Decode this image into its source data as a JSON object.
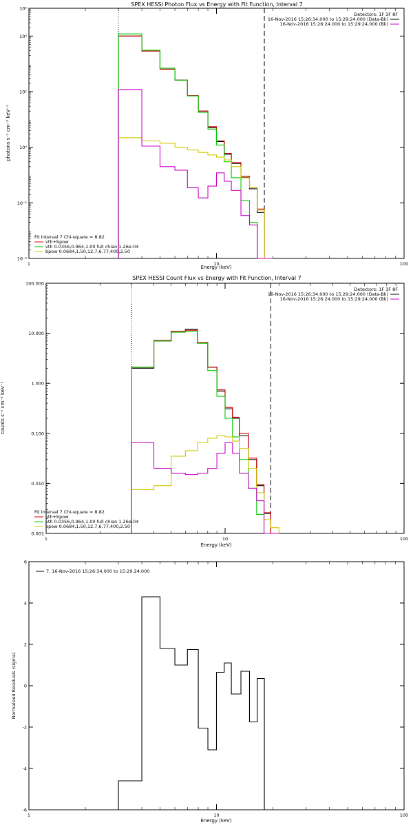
{
  "colors": {
    "data": "#000000",
    "total": "#d40000",
    "vth": "#00c800",
    "bpow": "#d2c800",
    "bk": "#c800c8"
  },
  "chart_data": [
    {
      "type": "line",
      "title": "SPEX HESSI Photon Flux vs Energy with Fit Function, Interval 7",
      "xlabel": "Energy (keV)",
      "ylabel": "photons s⁻¹ cm⁻² keV⁻¹",
      "xscale": "log",
      "yscale": "log",
      "xlim": [
        1,
        100
      ],
      "ylim": [
        0.0001,
        100000
      ],
      "xticks": [
        1,
        10,
        100
      ],
      "xtick_labels": [
        "1",
        "10",
        "100"
      ],
      "yticks": [
        0.0001,
        0.01,
        1,
        100,
        10000,
        100000
      ],
      "ytick_labels": [
        "10⁻⁴",
        "10⁻²",
        "10⁰",
        "10²",
        "10⁴",
        "10⁵"
      ],
      "legend_right": {
        "header": "Detectors: 1F 3F 8F",
        "entries": [
          {
            "label": "16-Nov-2016 15:26:34.000 to 15:29:24.000 (Data-Bk)",
            "color_key": "data"
          },
          {
            "label": "16-Nov-2016 15:26:24.000 to 15:29:24.000 (Bk)",
            "color_key": "bk"
          }
        ]
      },
      "legend_left": {
        "header": "Fit Interval 7   Chi-square = 8.82",
        "entries": [
          {
            "label": "vth+bpow",
            "color_key": "total"
          },
          {
            "label": "vth 0.0356,0.964,1.00  full chian 1.26e-04",
            "color_key": "vth"
          },
          {
            "label": "bpow 0.0684,1.50,12.7,6.77,400,2.50",
            "color_key": "bpow"
          }
        ]
      },
      "markers": [
        {
          "x": 3.0,
          "style": "dotted"
        },
        {
          "x": 18.0,
          "style": "dashed"
        }
      ],
      "bin_edges": [
        3.0,
        4.0,
        5.0,
        6.0,
        7.0,
        8.0,
        9.0,
        10.0,
        11.0,
        12.0,
        13.5,
        15.0,
        16.5,
        18.0,
        20.0
      ],
      "series": [
        {
          "color_key": "data",
          "values": [
            10000,
            2900,
            640,
            260,
            72,
            20,
            5.0,
            1.6,
            0.56,
            0.26,
            0.082,
            0.032,
            0.0045,
            0.0001
          ]
        },
        {
          "color_key": "total",
          "values": [
            10000,
            2900,
            640,
            260,
            72,
            20,
            5.5,
            1.7,
            0.6,
            0.28,
            0.09,
            0.035,
            0.006,
            0.0001
          ]
        },
        {
          "color_key": "vth",
          "values": [
            12000,
            3100,
            700,
            260,
            70,
            18,
            4.5,
            1.2,
            0.3,
            0.08,
            0.012,
            0.002,
            0.0001,
            0.0001
          ]
        },
        {
          "color_key": "bpow",
          "values": [
            2.2,
            1.7,
            1.4,
            1.0,
            0.8,
            0.65,
            0.53,
            0.44,
            0.35,
            0.2,
            0.08,
            0.035,
            0.0055,
            0.0001
          ]
        },
        {
          "color_key": "bk",
          "values": [
            120,
            1.1,
            0.2,
            0.15,
            0.035,
            0.015,
            0.04,
            0.12,
            0.06,
            0.028,
            0.0035,
            0.0016,
            0.0001,
            0.0001
          ]
        }
      ]
    },
    {
      "type": "line",
      "title": "SPEX HESSI Count Flux vs Energy with Fit Function, Interval 7",
      "xlabel": "Energy (keV)",
      "ylabel": "counts s⁻¹ cm⁻² keV⁻¹",
      "xscale": "log",
      "yscale": "log",
      "xlim": [
        1,
        100
      ],
      "ylim": [
        0.001,
        100
      ],
      "xticks": [
        1,
        10,
        100
      ],
      "xtick_labels": [
        "1",
        "10",
        "100"
      ],
      "yticks": [
        0.001,
        0.01,
        0.1,
        1,
        10,
        100
      ],
      "ytick_labels": [
        "0.001",
        "0.010",
        "0.100",
        "1.000",
        "10.000",
        "100.000"
      ],
      "legend_right": {
        "header": "Detectors: 1F 3F 8F",
        "entries": [
          {
            "label": "16-Nov-2016 15:26:34.000 to 15:29:24.000 (Data-Bk)",
            "color_key": "data"
          },
          {
            "label": "16-Nov-2016 15:26:24.000 to 15:29:24.000 (Bk)",
            "color_key": "bk"
          }
        ]
      },
      "legend_left": {
        "header": "Fit Interval 7   Chi-square = 8.82",
        "entries": [
          {
            "label": "vth+bpow",
            "color_key": "total"
          },
          {
            "label": "vth 0.0356,0.964,1.00  full chian 1.26e-04",
            "color_key": "vth"
          },
          {
            "label": "bpow 0.0684,1.50,12.7,6.77,400,2.50",
            "color_key": "bpow"
          }
        ]
      },
      "markers": [
        {
          "x": 3.0,
          "style": "dotted"
        },
        {
          "x": 18.0,
          "style": "dashed"
        }
      ],
      "bin_edges": [
        3.0,
        4.0,
        5.0,
        6.0,
        7.0,
        8.0,
        9.0,
        10.0,
        11.0,
        12.0,
        13.5,
        15.0,
        16.5,
        18.0,
        20.0
      ],
      "series": [
        {
          "color_key": "data",
          "values": [
            2.0,
            7.0,
            11.0,
            12.0,
            6.5,
            2.1,
            0.7,
            0.31,
            0.2,
            0.09,
            0.03,
            0.009,
            0.0025,
            0.001
          ]
        },
        {
          "color_key": "total",
          "values": [
            2.1,
            7.2,
            11.0,
            11.5,
            6.5,
            2.1,
            0.74,
            0.33,
            0.21,
            0.1,
            0.032,
            0.0095,
            0.0026,
            0.001
          ]
        },
        {
          "color_key": "vth",
          "values": [
            2.1,
            7.0,
            10.5,
            11.0,
            6.3,
            1.8,
            0.55,
            0.2,
            0.085,
            0.03,
            0.008,
            0.0024,
            0.001,
            0.001
          ]
        },
        {
          "color_key": "bpow",
          "values": [
            0.0075,
            0.009,
            0.035,
            0.045,
            0.065,
            0.08,
            0.09,
            0.085,
            0.07,
            0.05,
            0.02,
            0.0065,
            0.0019,
            0.0013
          ]
        },
        {
          "color_key": "bk",
          "values": [
            0.065,
            0.02,
            0.016,
            0.015,
            0.016,
            0.02,
            0.04,
            0.065,
            0.04,
            0.016,
            0.008,
            0.0045,
            0.001,
            0.001
          ]
        }
      ]
    },
    {
      "type": "line",
      "title": "",
      "xlabel": "Energy (keV)",
      "ylabel": "Normalized Residuals (sigma)",
      "xscale": "log",
      "yscale": "linear",
      "xlim": [
        1,
        100
      ],
      "ylim": [
        -6,
        6
      ],
      "xticks": [
        1,
        10,
        100
      ],
      "xtick_labels": [
        "1",
        "10",
        "100"
      ],
      "yticks": [
        -6,
        -4,
        -2,
        0,
        2,
        4,
        6
      ],
      "ytick_labels": [
        "-6",
        "-4",
        "-2",
        "0",
        "2",
        "4",
        "6"
      ],
      "legend_left": {
        "header": "",
        "entries": [
          {
            "label": "7. 16-Nov-2016 15:26:34.000 to 15:29:24.000",
            "color_key": "data"
          }
        ]
      },
      "markers": [],
      "bin_edges": [
        3.0,
        4.0,
        5.0,
        6.0,
        7.0,
        8.0,
        9.0,
        10.0,
        11.0,
        12.0,
        13.5,
        15.0,
        16.5,
        18.0
      ],
      "series": [
        {
          "color_key": "data",
          "values": [
            -4.6,
            4.3,
            1.8,
            1.0,
            1.75,
            -2.05,
            -3.1,
            0.65,
            1.1,
            -0.4,
            0.7,
            -1.75,
            0.35
          ]
        }
      ]
    }
  ]
}
